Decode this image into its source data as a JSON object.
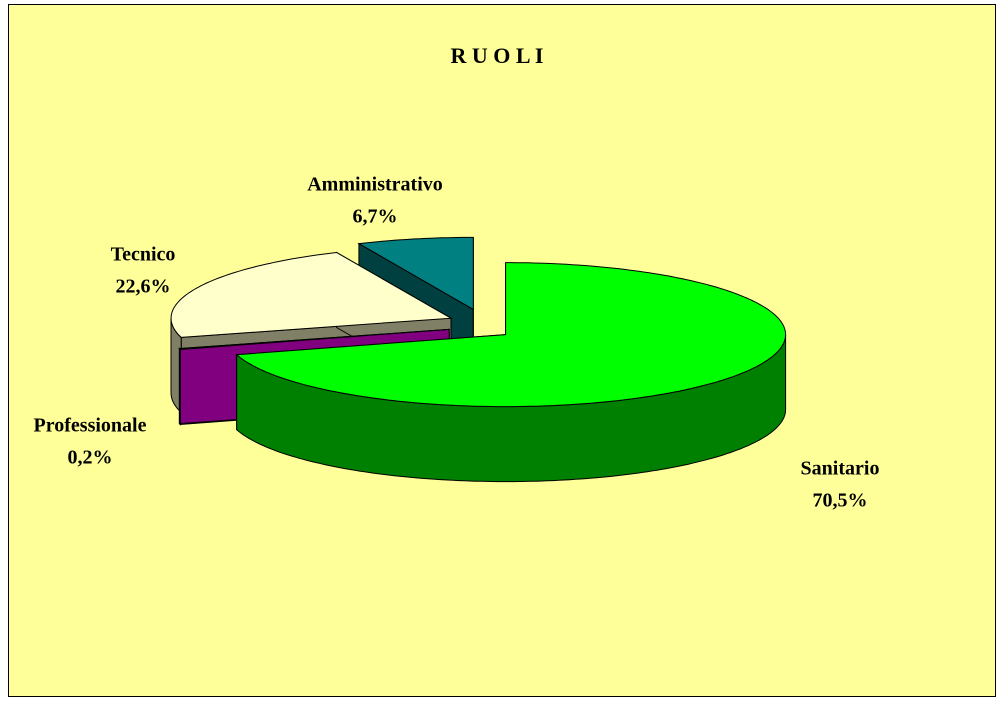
{
  "chart_data": {
    "type": "pie3d",
    "title": "R U O L I",
    "categories": [
      "Sanitario",
      "Professionale",
      "Tecnico",
      "Amministrativo"
    ],
    "values": [
      70.5,
      0.2,
      22.6,
      6.7
    ],
    "value_labels": [
      "70,5%",
      "0,2%",
      "22,6%",
      "6,7%"
    ],
    "colors": [
      "#00ff00",
      "#ff00ff",
      "#ffffcc",
      "#008080"
    ]
  }
}
